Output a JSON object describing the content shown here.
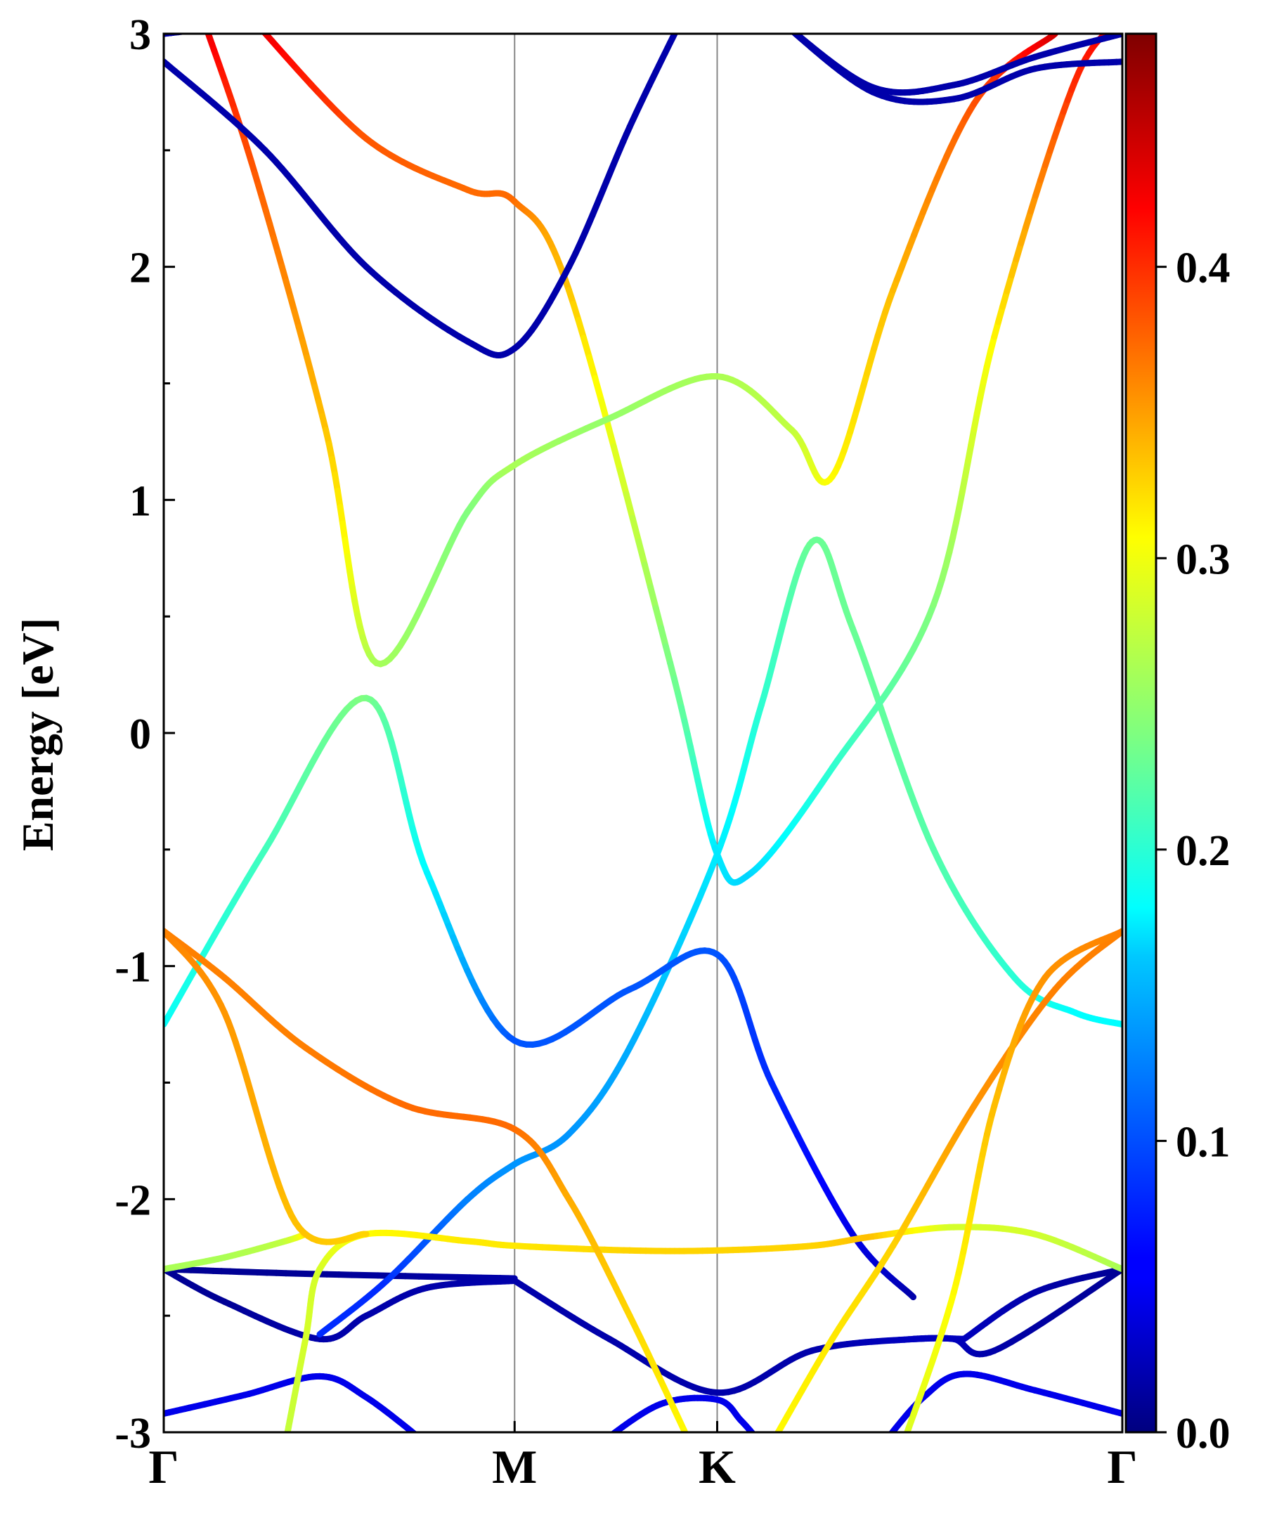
{
  "chart_data": {
    "type": "line",
    "title": "",
    "xlabel": "",
    "ylabel": "Energy [eV]",
    "ylim": [
      -3,
      3
    ],
    "xlim": [
      0,
      4.732
    ],
    "grid": false,
    "yticks": [
      {
        "value": 3,
        "label": "3"
      },
      {
        "value": 2,
        "label": "2"
      },
      {
        "value": 1,
        "label": "1"
      },
      {
        "value": 0,
        "label": "0"
      },
      {
        "value": -1,
        "label": "-1"
      },
      {
        "value": -2,
        "label": "-2"
      },
      {
        "value": -3,
        "label": "-3"
      }
    ],
    "yminor": [
      2.5,
      1.5,
      0.5,
      -0.5,
      -1.5,
      -2.5
    ],
    "kpoints": [
      {
        "x": 0,
        "label": "Γ"
      },
      {
        "x": 1.732,
        "label": "M"
      },
      {
        "x": 2.732,
        "label": "K"
      },
      {
        "x": 4.732,
        "label": "Γ"
      }
    ],
    "colorbar": {
      "colormap": "jet",
      "range": [
        0.0,
        0.48
      ],
      "ticks": [
        {
          "value": 0.0,
          "label": "0.0"
        },
        {
          "value": 0.1,
          "label": "0.1"
        },
        {
          "value": 0.2,
          "label": "0.2"
        },
        {
          "value": 0.3,
          "label": "0.3"
        },
        {
          "value": 0.4,
          "label": "0.4"
        }
      ]
    },
    "series": [
      {
        "points": [
          [
            0,
            -2.92,
            0.05
          ],
          [
            0.4,
            -2.84,
            0.05
          ],
          [
            0.77,
            -2.76,
            0.05
          ],
          [
            1.0,
            -2.85,
            0.05
          ],
          [
            1.3,
            -3.05,
            0.05
          ]
        ]
      },
      {
        "points": [
          [
            2.15,
            -3.05,
            0.05
          ],
          [
            2.45,
            -2.88,
            0.05
          ],
          [
            2.732,
            -2.86,
            0.05
          ],
          [
            2.85,
            -2.95,
            0.05
          ],
          [
            2.95,
            -3.05,
            0.05
          ]
        ]
      },
      {
        "points": [
          [
            3.55,
            -3.05,
            0.05
          ],
          [
            3.75,
            -2.85,
            0.05
          ],
          [
            3.95,
            -2.75,
            0.05
          ],
          [
            4.3,
            -2.82,
            0.05
          ],
          [
            4.732,
            -2.92,
            0.05
          ]
        ]
      },
      {
        "points": [
          [
            0,
            -2.3,
            0.01
          ],
          [
            0.3,
            -2.44,
            0.01
          ],
          [
            0.77,
            -2.6,
            0.02
          ],
          [
            1.0,
            -2.5,
            0.02
          ],
          [
            1.3,
            -2.38,
            0.02
          ],
          [
            1.732,
            -2.35,
            0.02
          ]
        ]
      },
      {
        "points": [
          [
            1.732,
            -2.35,
            0.02
          ],
          [
            2.2,
            -2.6,
            0.02
          ],
          [
            2.732,
            -2.83,
            0.02
          ],
          [
            3.2,
            -2.65,
            0.02
          ],
          [
            3.7,
            -2.6,
            0.03
          ],
          [
            3.95,
            -2.6,
            0.03
          ]
        ]
      },
      {
        "points": [
          [
            3.95,
            -2.6,
            0.03
          ],
          [
            4.3,
            -2.4,
            0.02
          ],
          [
            4.732,
            -2.3,
            0.01
          ]
        ]
      },
      {
        "points": [
          [
            0,
            -2.3,
            0.01
          ],
          [
            0.7,
            -2.32,
            0.01
          ],
          [
            1.732,
            -2.34,
            0.02
          ]
        ]
      },
      {
        "points": [
          [
            3.7,
            -2.6,
            0.03
          ],
          [
            3.9,
            -2.6,
            0.03
          ],
          [
            4.1,
            -2.65,
            0.02
          ],
          [
            4.732,
            -2.3,
            0.01
          ]
        ]
      },
      {
        "points": [
          [
            0.77,
            -2.58,
            0.08
          ],
          [
            1.1,
            -2.35,
            0.08
          ],
          [
            1.5,
            -2.0,
            0.12
          ],
          [
            1.732,
            -1.85,
            0.13
          ],
          [
            2.0,
            -1.72,
            0.13
          ],
          [
            2.3,
            -1.35,
            0.14
          ],
          [
            2.732,
            -0.52,
            0.17
          ],
          [
            2.95,
            0.12,
            0.2
          ],
          [
            3.2,
            0.82,
            0.23
          ],
          [
            3.4,
            0.45,
            0.23
          ],
          [
            3.8,
            -0.5,
            0.22
          ],
          [
            4.2,
            -1.05,
            0.2
          ],
          [
            4.5,
            -1.2,
            0.18
          ],
          [
            4.732,
            -1.25,
            0.18
          ]
        ]
      },
      {
        "points": [
          [
            0,
            -1.25,
            0.18
          ],
          [
            0.5,
            -0.5,
            0.21
          ],
          [
            1.0,
            0.15,
            0.24
          ],
          [
            1.3,
            -0.6,
            0.18
          ],
          [
            1.732,
            -1.32,
            0.1
          ],
          [
            2.3,
            -1.1,
            0.1
          ],
          [
            2.732,
            -0.95,
            0.1
          ],
          [
            3.0,
            -1.5,
            0.08
          ],
          [
            3.4,
            -2.15,
            0.05
          ],
          [
            3.7,
            -2.42,
            0.02
          ]
        ]
      },
      {
        "points": [
          [
            0.6,
            -3.05,
            0.27
          ],
          [
            0.7,
            -2.6,
            0.28
          ],
          [
            0.77,
            -2.3,
            0.28
          ],
          [
            1.0,
            -2.15,
            0.3
          ],
          [
            1.5,
            -2.18,
            0.31
          ],
          [
            1.732,
            -2.2,
            0.31
          ],
          [
            2.3,
            -2.22,
            0.32
          ],
          [
            2.732,
            -2.22,
            0.32
          ],
          [
            3.2,
            -2.2,
            0.32
          ],
          [
            3.5,
            -2.16,
            0.33
          ],
          [
            3.9,
            -2.12,
            0.28
          ],
          [
            4.3,
            -2.15,
            0.28
          ],
          [
            4.732,
            -2.3,
            0.26
          ]
        ]
      },
      {
        "points": [
          [
            0,
            -2.3,
            0.26
          ],
          [
            0.3,
            -2.25,
            0.26
          ],
          [
            0.6,
            -2.18,
            0.27
          ],
          [
            0.7,
            -2.15,
            0.31
          ]
        ]
      },
      {
        "points": [
          [
            0,
            -0.85,
            0.36
          ],
          [
            0.3,
            -1.05,
            0.36
          ],
          [
            0.7,
            -1.35,
            0.36
          ],
          [
            1.2,
            -1.6,
            0.37
          ],
          [
            1.732,
            -1.7,
            0.37
          ],
          [
            2.0,
            -2.0,
            0.34
          ],
          [
            2.3,
            -2.5,
            0.32
          ],
          [
            2.6,
            -3.05,
            0.3
          ]
        ]
      },
      {
        "points": [
          [
            0,
            -0.85,
            0.36
          ],
          [
            0.3,
            -1.2,
            0.35
          ],
          [
            0.65,
            -2.1,
            0.33
          ],
          [
            1.0,
            -2.15,
            0.32
          ]
        ]
      },
      {
        "points": [
          [
            3.0,
            -3.05,
            0.3
          ],
          [
            3.3,
            -2.6,
            0.31
          ],
          [
            3.6,
            -2.2,
            0.32
          ],
          [
            4.0,
            -1.6,
            0.35
          ],
          [
            4.4,
            -1.1,
            0.36
          ],
          [
            4.732,
            -0.85,
            0.36
          ]
        ]
      },
      {
        "points": [
          [
            3.65,
            -3.05,
            0.28
          ],
          [
            3.9,
            -2.4,
            0.3
          ],
          [
            4.1,
            -1.6,
            0.33
          ],
          [
            4.35,
            -1.05,
            0.35
          ],
          [
            4.732,
            -0.85,
            0.36
          ]
        ]
      },
      {
        "points": [
          [
            0.45,
            3.05,
            0.44
          ],
          [
            1.0,
            2.55,
            0.38
          ],
          [
            1.5,
            2.33,
            0.37
          ],
          [
            1.732,
            2.28,
            0.37
          ],
          [
            2.0,
            1.9,
            0.33
          ],
          [
            2.5,
            0.3,
            0.24
          ],
          [
            2.732,
            -0.52,
            0.17
          ],
          [
            2.9,
            -0.6,
            0.16
          ],
          [
            3.3,
            -0.15,
            0.2
          ],
          [
            3.8,
            0.55,
            0.24
          ],
          [
            4.1,
            1.7,
            0.3
          ],
          [
            4.5,
            2.8,
            0.4
          ],
          [
            4.732,
            3.05,
            0.44
          ]
        ]
      },
      {
        "points": [
          [
            0,
            3.0,
            0.02
          ],
          [
            0.2,
            3.02,
            0.02
          ]
        ]
      },
      {
        "points": [
          [
            0.2,
            3.05,
            0.44
          ],
          [
            0.45,
            2.4,
            0.38
          ],
          [
            0.8,
            1.3,
            0.33
          ],
          [
            1.05,
            0.3,
            0.26
          ],
          [
            1.5,
            0.95,
            0.24
          ],
          [
            1.732,
            1.15,
            0.26
          ],
          [
            2.2,
            1.35,
            0.25
          ],
          [
            2.732,
            1.53,
            0.26
          ],
          [
            3.1,
            1.3,
            0.27
          ],
          [
            3.3,
            1.1,
            0.3
          ],
          [
            3.6,
            1.9,
            0.33
          ],
          [
            4.0,
            2.7,
            0.38
          ],
          [
            4.4,
            3.0,
            0.44
          ]
        ]
      },
      {
        "points": [
          [
            0,
            2.88,
            0.02
          ],
          [
            0.5,
            2.5,
            0.02
          ],
          [
            1.0,
            2.0,
            0.02
          ],
          [
            1.5,
            1.68,
            0.02
          ],
          [
            1.732,
            1.65,
            0.02
          ],
          [
            2.0,
            2.0,
            0.02
          ],
          [
            2.3,
            2.6,
            0.02
          ],
          [
            2.55,
            3.05,
            0.02
          ]
        ]
      },
      {
        "points": [
          [
            3.05,
            3.05,
            0.02
          ],
          [
            3.5,
            2.75,
            0.02
          ],
          [
            3.9,
            2.72,
            0.02
          ],
          [
            4.3,
            2.85,
            0.02
          ],
          [
            4.732,
            2.88,
            0.02
          ]
        ]
      },
      {
        "points": [
          [
            3.05,
            3.05,
            0.02
          ],
          [
            3.5,
            2.77,
            0.02
          ],
          [
            3.9,
            2.78,
            0.02
          ],
          [
            4.3,
            2.9,
            0.02
          ],
          [
            4.732,
            3.0,
            0.02
          ]
        ]
      }
    ]
  }
}
